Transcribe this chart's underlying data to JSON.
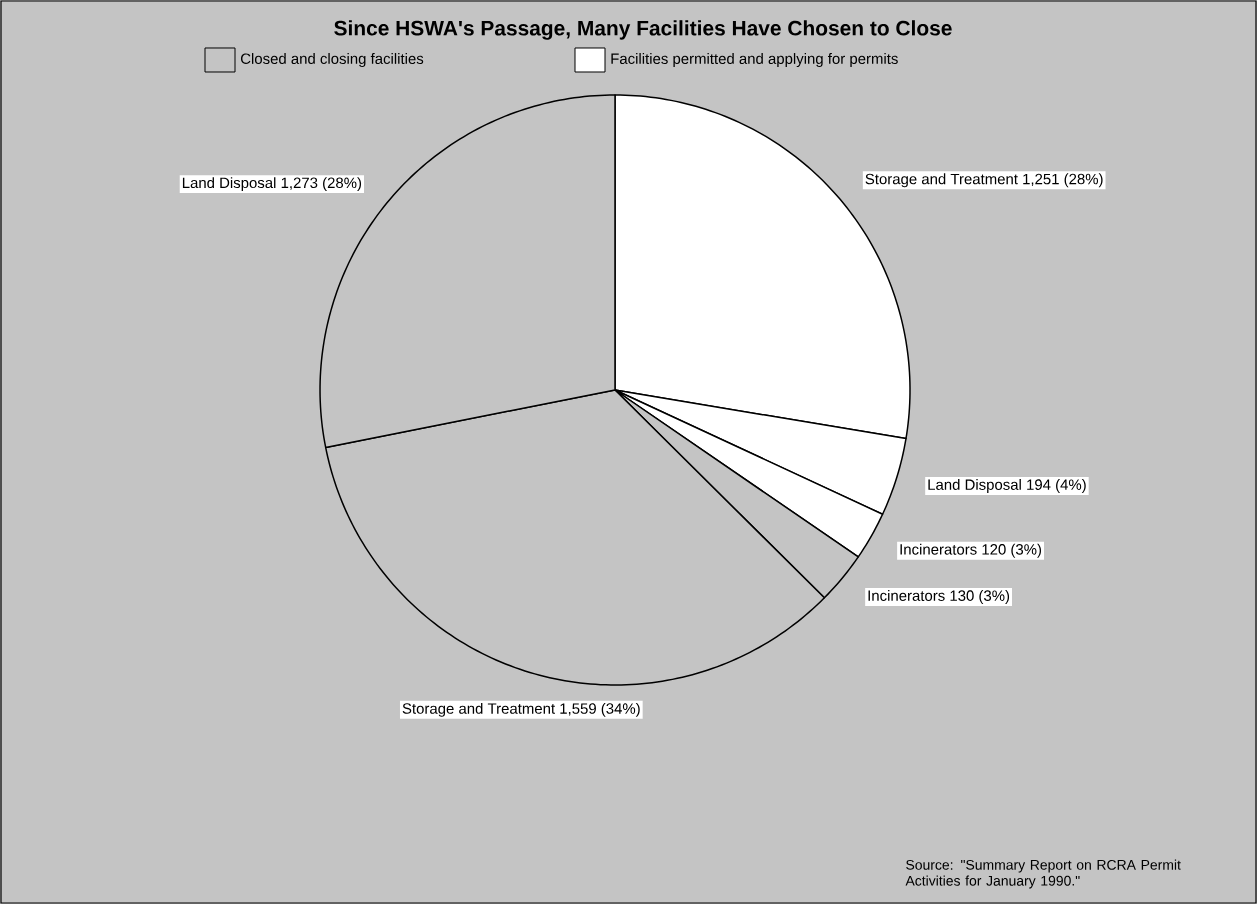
{
  "chart_data": {
    "type": "pie",
    "title": "Since HSWA's Passage, Many Facilities Have Chosen to Close",
    "categories": [
      "Storage and Treatment",
      "Land Disposal",
      "Incinerators",
      "Incinerators",
      "Storage and Treatment",
      "Land Disposal"
    ],
    "values": [
      1251,
      194,
      120,
      130,
      1559,
      1273
    ],
    "colors": [
      "#ffffff",
      "#ffffff",
      "#ffffff",
      "#c4c4c4",
      "#c4c4c4",
      "#c4c4c4"
    ],
    "value_labels": [
      "1,251 (28%)",
      "194 (4%)",
      "120 (3%)",
      "130 (3%)",
      "1,559 (34%)",
      "1,273 (28%)"
    ],
    "annotations": [
      "Closed and closing facilities",
      "Facilities permitted and applying for permits",
      "Source: \"Summary Report on RCRA Permit Activities for January 1990.\""
    ]
  }
}
